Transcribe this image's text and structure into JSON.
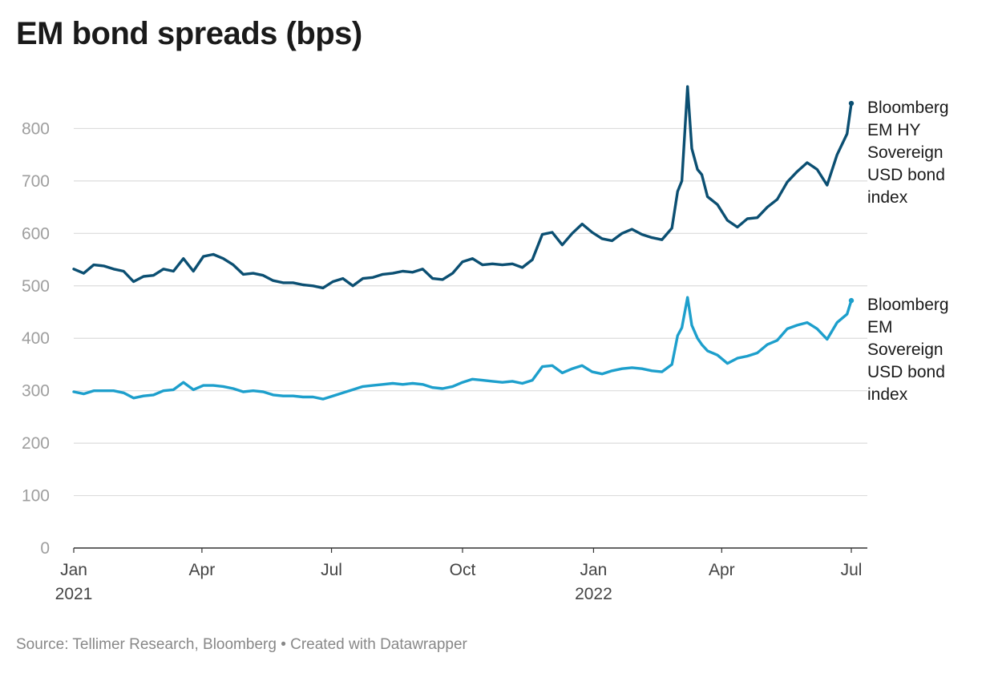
{
  "title": "EM bond spreads (bps)",
  "footer": {
    "source": "Source: Tellimer Research, Bloomberg",
    "separator": "•",
    "created": "Created with Datawrapper"
  },
  "chart_data": {
    "type": "line",
    "title": "EM bond spreads (bps)",
    "xlabel": "",
    "ylabel": "",
    "ylim": [
      0,
      900
    ],
    "xlim": [
      "2021-01-01",
      "2022-07-01"
    ],
    "grid": true,
    "legend": "end-of-line labels, right",
    "y_ticks": [
      0,
      100,
      200,
      300,
      400,
      500,
      600,
      700,
      800
    ],
    "x_ticks": [
      {
        "date": "2021-01-01",
        "label": "Jan",
        "sublabel": "2021"
      },
      {
        "date": "2021-04-01",
        "label": "Apr",
        "sublabel": ""
      },
      {
        "date": "2021-07-01",
        "label": "Jul",
        "sublabel": ""
      },
      {
        "date": "2021-10-01",
        "label": "Oct",
        "sublabel": ""
      },
      {
        "date": "2022-01-01",
        "label": "Jan",
        "sublabel": "2022"
      },
      {
        "date": "2022-04-01",
        "label": "Apr",
        "sublabel": ""
      },
      {
        "date": "2022-07-01",
        "label": "Jul",
        "sublabel": ""
      }
    ],
    "series": [
      {
        "name": "Bloomberg EM HY Sovereign USD bond index",
        "label_lines": [
          "Bloomberg",
          "EM HY",
          "Sovereign",
          "USD bond",
          "index"
        ],
        "color": "#0b4f72",
        "points": [
          [
            "2021-01-01",
            532
          ],
          [
            "2021-01-08",
            524
          ],
          [
            "2021-01-15",
            540
          ],
          [
            "2021-01-22",
            538
          ],
          [
            "2021-01-29",
            532
          ],
          [
            "2021-02-05",
            528
          ],
          [
            "2021-02-12",
            508
          ],
          [
            "2021-02-19",
            518
          ],
          [
            "2021-02-26",
            520
          ],
          [
            "2021-03-05",
            532
          ],
          [
            "2021-03-12",
            528
          ],
          [
            "2021-03-19",
            552
          ],
          [
            "2021-03-26",
            528
          ],
          [
            "2021-04-02",
            556
          ],
          [
            "2021-04-09",
            560
          ],
          [
            "2021-04-16",
            552
          ],
          [
            "2021-04-23",
            540
          ],
          [
            "2021-04-30",
            522
          ],
          [
            "2021-05-07",
            524
          ],
          [
            "2021-05-14",
            520
          ],
          [
            "2021-05-21",
            510
          ],
          [
            "2021-05-28",
            506
          ],
          [
            "2021-06-04",
            506
          ],
          [
            "2021-06-11",
            502
          ],
          [
            "2021-06-18",
            500
          ],
          [
            "2021-06-25",
            496
          ],
          [
            "2021-07-02",
            508
          ],
          [
            "2021-07-09",
            514
          ],
          [
            "2021-07-16",
            500
          ],
          [
            "2021-07-23",
            514
          ],
          [
            "2021-07-30",
            516
          ],
          [
            "2021-08-06",
            522
          ],
          [
            "2021-08-13",
            524
          ],
          [
            "2021-08-20",
            528
          ],
          [
            "2021-08-27",
            526
          ],
          [
            "2021-09-03",
            532
          ],
          [
            "2021-09-10",
            514
          ],
          [
            "2021-09-17",
            512
          ],
          [
            "2021-09-24",
            524
          ],
          [
            "2021-10-01",
            546
          ],
          [
            "2021-10-08",
            552
          ],
          [
            "2021-10-15",
            540
          ],
          [
            "2021-10-22",
            542
          ],
          [
            "2021-10-29",
            540
          ],
          [
            "2021-11-05",
            542
          ],
          [
            "2021-11-12",
            535
          ],
          [
            "2021-11-19",
            550
          ],
          [
            "2021-11-26",
            598
          ],
          [
            "2021-12-03",
            602
          ],
          [
            "2021-12-10",
            578
          ],
          [
            "2021-12-17",
            600
          ],
          [
            "2021-12-24",
            618
          ],
          [
            "2021-12-31",
            602
          ],
          [
            "2022-01-07",
            590
          ],
          [
            "2022-01-14",
            586
          ],
          [
            "2022-01-21",
            600
          ],
          [
            "2022-01-28",
            608
          ],
          [
            "2022-02-04",
            598
          ],
          [
            "2022-02-11",
            592
          ],
          [
            "2022-02-18",
            588
          ],
          [
            "2022-02-25",
            610
          ],
          [
            "2022-03-01",
            680
          ],
          [
            "2022-03-04",
            700
          ],
          [
            "2022-03-08",
            880
          ],
          [
            "2022-03-11",
            762
          ],
          [
            "2022-03-15",
            722
          ],
          [
            "2022-03-18",
            712
          ],
          [
            "2022-03-22",
            670
          ],
          [
            "2022-03-29",
            655
          ],
          [
            "2022-04-05",
            625
          ],
          [
            "2022-04-12",
            612
          ],
          [
            "2022-04-19",
            628
          ],
          [
            "2022-04-26",
            630
          ],
          [
            "2022-05-03",
            650
          ],
          [
            "2022-05-10",
            665
          ],
          [
            "2022-05-17",
            698
          ],
          [
            "2022-05-24",
            718
          ],
          [
            "2022-05-31",
            735
          ],
          [
            "2022-06-07",
            722
          ],
          [
            "2022-06-14",
            692
          ],
          [
            "2022-06-21",
            750
          ],
          [
            "2022-06-28",
            790
          ],
          [
            "2022-07-01",
            848
          ]
        ]
      },
      {
        "name": "Bloomberg EM Sovereign USD bond index",
        "label_lines": [
          "Bloomberg",
          "EM",
          "Sovereign",
          "USD bond",
          "index"
        ],
        "color": "#1d9fcc",
        "points": [
          [
            "2021-01-01",
            298
          ],
          [
            "2021-01-08",
            294
          ],
          [
            "2021-01-15",
            300
          ],
          [
            "2021-01-22",
            300
          ],
          [
            "2021-01-29",
            300
          ],
          [
            "2021-02-05",
            296
          ],
          [
            "2021-02-12",
            286
          ],
          [
            "2021-02-19",
            290
          ],
          [
            "2021-02-26",
            292
          ],
          [
            "2021-03-05",
            300
          ],
          [
            "2021-03-12",
            302
          ],
          [
            "2021-03-19",
            316
          ],
          [
            "2021-03-26",
            302
          ],
          [
            "2021-04-02",
            310
          ],
          [
            "2021-04-09",
            310
          ],
          [
            "2021-04-16",
            308
          ],
          [
            "2021-04-23",
            304
          ],
          [
            "2021-04-30",
            298
          ],
          [
            "2021-05-07",
            300
          ],
          [
            "2021-05-14",
            298
          ],
          [
            "2021-05-21",
            292
          ],
          [
            "2021-05-28",
            290
          ],
          [
            "2021-06-04",
            290
          ],
          [
            "2021-06-11",
            288
          ],
          [
            "2021-06-18",
            288
          ],
          [
            "2021-06-25",
            284
          ],
          [
            "2021-07-02",
            290
          ],
          [
            "2021-07-09",
            296
          ],
          [
            "2021-07-16",
            302
          ],
          [
            "2021-07-23",
            308
          ],
          [
            "2021-07-30",
            310
          ],
          [
            "2021-08-06",
            312
          ],
          [
            "2021-08-13",
            314
          ],
          [
            "2021-08-20",
            312
          ],
          [
            "2021-08-27",
            314
          ],
          [
            "2021-09-03",
            312
          ],
          [
            "2021-09-10",
            306
          ],
          [
            "2021-09-17",
            304
          ],
          [
            "2021-09-24",
            308
          ],
          [
            "2021-10-01",
            316
          ],
          [
            "2021-10-08",
            322
          ],
          [
            "2021-10-15",
            320
          ],
          [
            "2021-10-22",
            318
          ],
          [
            "2021-10-29",
            316
          ],
          [
            "2021-11-05",
            318
          ],
          [
            "2021-11-12",
            314
          ],
          [
            "2021-11-19",
            320
          ],
          [
            "2021-11-26",
            346
          ],
          [
            "2021-12-03",
            348
          ],
          [
            "2021-12-10",
            334
          ],
          [
            "2021-12-17",
            342
          ],
          [
            "2021-12-24",
            348
          ],
          [
            "2021-12-31",
            336
          ],
          [
            "2022-01-07",
            332
          ],
          [
            "2022-01-14",
            338
          ],
          [
            "2022-01-21",
            342
          ],
          [
            "2022-01-28",
            344
          ],
          [
            "2022-02-04",
            342
          ],
          [
            "2022-02-11",
            338
          ],
          [
            "2022-02-18",
            336
          ],
          [
            "2022-02-25",
            350
          ],
          [
            "2022-03-01",
            405
          ],
          [
            "2022-03-04",
            420
          ],
          [
            "2022-03-08",
            478
          ],
          [
            "2022-03-11",
            425
          ],
          [
            "2022-03-15",
            400
          ],
          [
            "2022-03-18",
            388
          ],
          [
            "2022-03-22",
            376
          ],
          [
            "2022-03-29",
            368
          ],
          [
            "2022-04-05",
            352
          ],
          [
            "2022-04-12",
            362
          ],
          [
            "2022-04-19",
            366
          ],
          [
            "2022-04-26",
            372
          ],
          [
            "2022-05-03",
            388
          ],
          [
            "2022-05-10",
            396
          ],
          [
            "2022-05-17",
            418
          ],
          [
            "2022-05-24",
            425
          ],
          [
            "2022-05-31",
            430
          ],
          [
            "2022-06-07",
            418
          ],
          [
            "2022-06-14",
            398
          ],
          [
            "2022-06-21",
            430
          ],
          [
            "2022-06-28",
            446
          ],
          [
            "2022-07-01",
            472
          ]
        ]
      }
    ]
  }
}
